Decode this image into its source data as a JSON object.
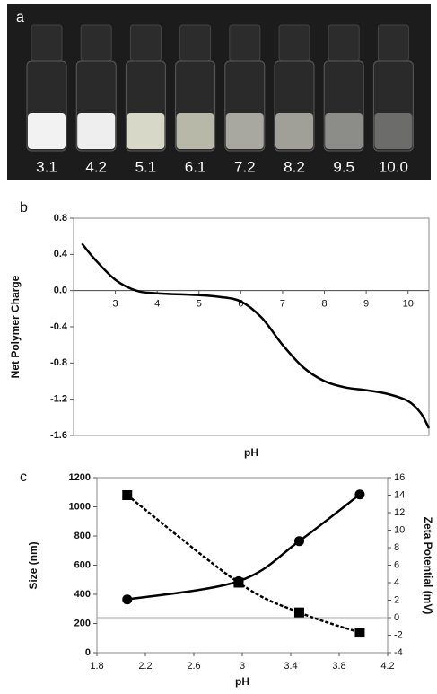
{
  "photo": {
    "label": "a",
    "vial_labels": [
      "3.1",
      "4.2",
      "5.1",
      "6.1",
      "7.2",
      "8.2",
      "9.5",
      "10.0"
    ]
  },
  "chart_data": [
    {
      "type": "line",
      "panel_label": "b",
      "x_label": "pH",
      "y_label": "Net Polymer Charge",
      "x": [
        2.2,
        2.5,
        3.0,
        3.5,
        4.0,
        5.0,
        5.5,
        6.0,
        6.5,
        7.0,
        7.5,
        8.0,
        8.5,
        9.0,
        9.5,
        10.0,
        10.3,
        10.5
      ],
      "values": [
        0.52,
        0.35,
        0.12,
        0.0,
        -0.03,
        -0.05,
        -0.07,
        -0.12,
        -0.3,
        -0.6,
        -0.85,
        -1.0,
        -1.07,
        -1.1,
        -1.14,
        -1.22,
        -1.35,
        -1.52
      ],
      "color": "#000000",
      "xlim": [
        2.0,
        10.5
      ],
      "xticks": [
        3,
        4,
        5,
        6,
        7,
        8,
        9,
        10
      ],
      "ylim": [
        -1.6,
        0.8
      ],
      "yticks": [
        0.8,
        0.4,
        {
          "value": 0,
          "label": "0.0"
        },
        -0.4,
        -0.8,
        -1.2,
        -1.6
      ],
      "xaxis_at_y": 0
    },
    {
      "type": "line",
      "panel_label": "c",
      "x_label": "pH",
      "y_label": "Size (nm)",
      "y2_label": "Zeta Potential (mV)",
      "x": [
        2.05,
        2.97,
        3.47,
        3.97
      ],
      "series": [
        {
          "values": [
            365,
            490,
            765,
            1085
          ],
          "color": "#000000",
          "marker": "circle",
          "dashed": false
        },
        {
          "values": [
            14,
            4,
            0.6,
            -1.7
          ],
          "color": "#000000",
          "marker": "square",
          "dashed": true,
          "axis": "y2"
        }
      ],
      "xlim": [
        1.8,
        4.2
      ],
      "xticks": [
        1.8,
        2.2,
        2.6,
        3,
        3.4,
        3.8,
        4.2
      ],
      "ylim": [
        0,
        1200
      ],
      "yticks": [
        0,
        200,
        400,
        600,
        800,
        1000,
        1200
      ],
      "y2lim": [
        -4,
        16
      ],
      "y2ticks": [
        -4,
        -2,
        0,
        2,
        4,
        6,
        8,
        10,
        12,
        14,
        16
      ],
      "hline_y2": 0
    }
  ]
}
